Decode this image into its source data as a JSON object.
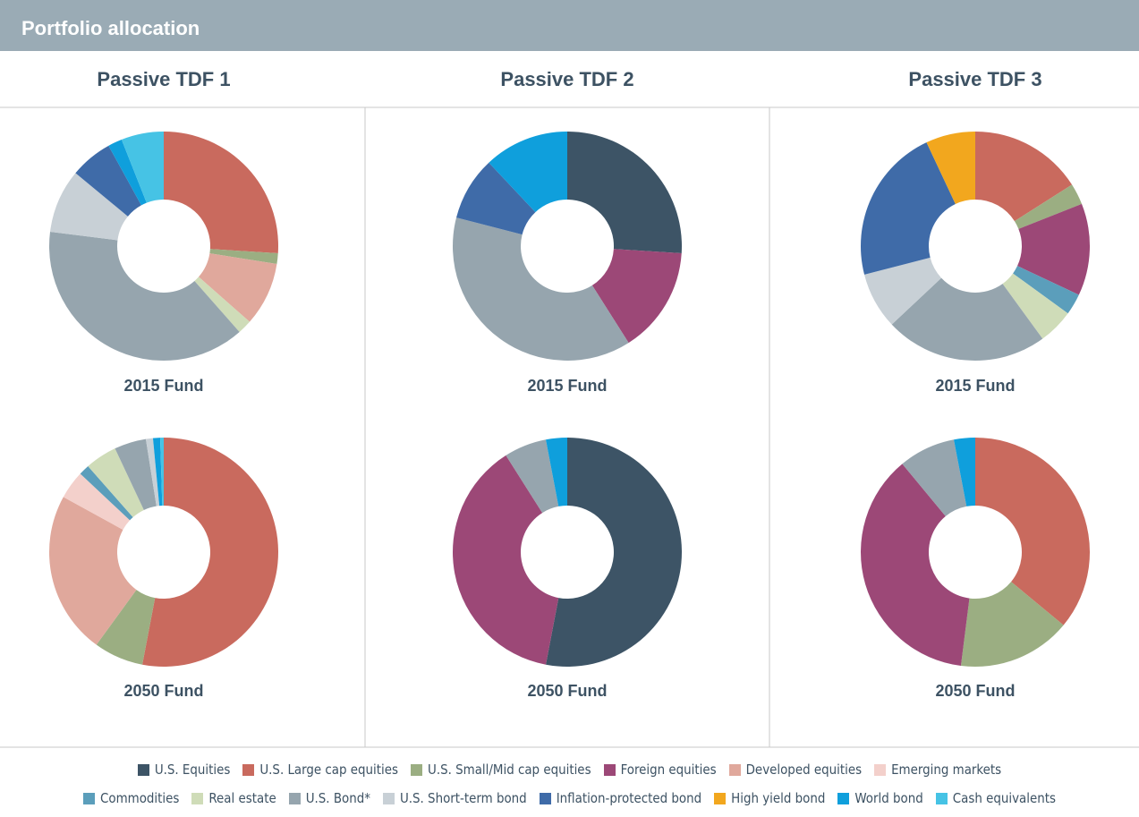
{
  "title": "Portfolio allocation",
  "legend": {
    "categories": [
      "U.S. Equities",
      "U.S. Large cap equities",
      "U.S. Small/Mid cap equities",
      "Foreign equities",
      "Developed equities",
      "Emerging markets",
      "Commodities",
      "Real estate",
      "U.S. Bond*",
      "U.S. Short-term bond",
      "Inflation-protected bond",
      "High yield bond",
      "World bond",
      "Cash equivalents"
    ],
    "colors": [
      "#3d5466",
      "#c96a5e",
      "#9bae82",
      "#9c4877",
      "#e0a89c",
      "#f3d0cb",
      "#5b9ebb",
      "#cfdcb8",
      "#96a5ae",
      "#c8d0d6",
      "#3f6ba8",
      "#f2a71e",
      "#0f9fdc",
      "#46c3e5"
    ]
  },
  "chart_data": [
    {
      "type": "donut",
      "title": "Passive TDF 1",
      "funds": [
        {
          "name": "2015 Fund",
          "values": [
            0,
            26,
            1.5,
            0,
            9,
            0,
            0,
            2,
            38.5,
            9,
            6,
            0,
            2,
            6
          ]
        },
        {
          "name": "2050 Fund",
          "values": [
            0,
            53,
            7,
            0,
            23,
            4,
            1.5,
            4.5,
            4.5,
            1,
            0,
            0,
            1,
            0.5
          ]
        }
      ]
    },
    {
      "type": "donut",
      "title": "Passive TDF 2",
      "funds": [
        {
          "name": "2015 Fund",
          "values": [
            26,
            0,
            0,
            15,
            0,
            0,
            0,
            0,
            38,
            0,
            9,
            0,
            12,
            0
          ]
        },
        {
          "name": "2050 Fund",
          "values": [
            53,
            0,
            0,
            38,
            0,
            0,
            0,
            0,
            6,
            0,
            0,
            0,
            3,
            0
          ]
        }
      ]
    },
    {
      "type": "donut",
      "title": "Passive TDF 3",
      "funds": [
        {
          "name": "2015 Fund",
          "values": [
            0,
            16,
            3,
            13,
            0,
            0,
            3,
            5,
            23,
            8,
            22,
            7,
            0,
            0
          ]
        },
        {
          "name": "2050 Fund",
          "values": [
            0,
            36,
            16,
            37,
            0,
            0,
            0,
            0,
            8,
            0,
            0,
            0,
            3,
            0
          ]
        }
      ]
    }
  ]
}
